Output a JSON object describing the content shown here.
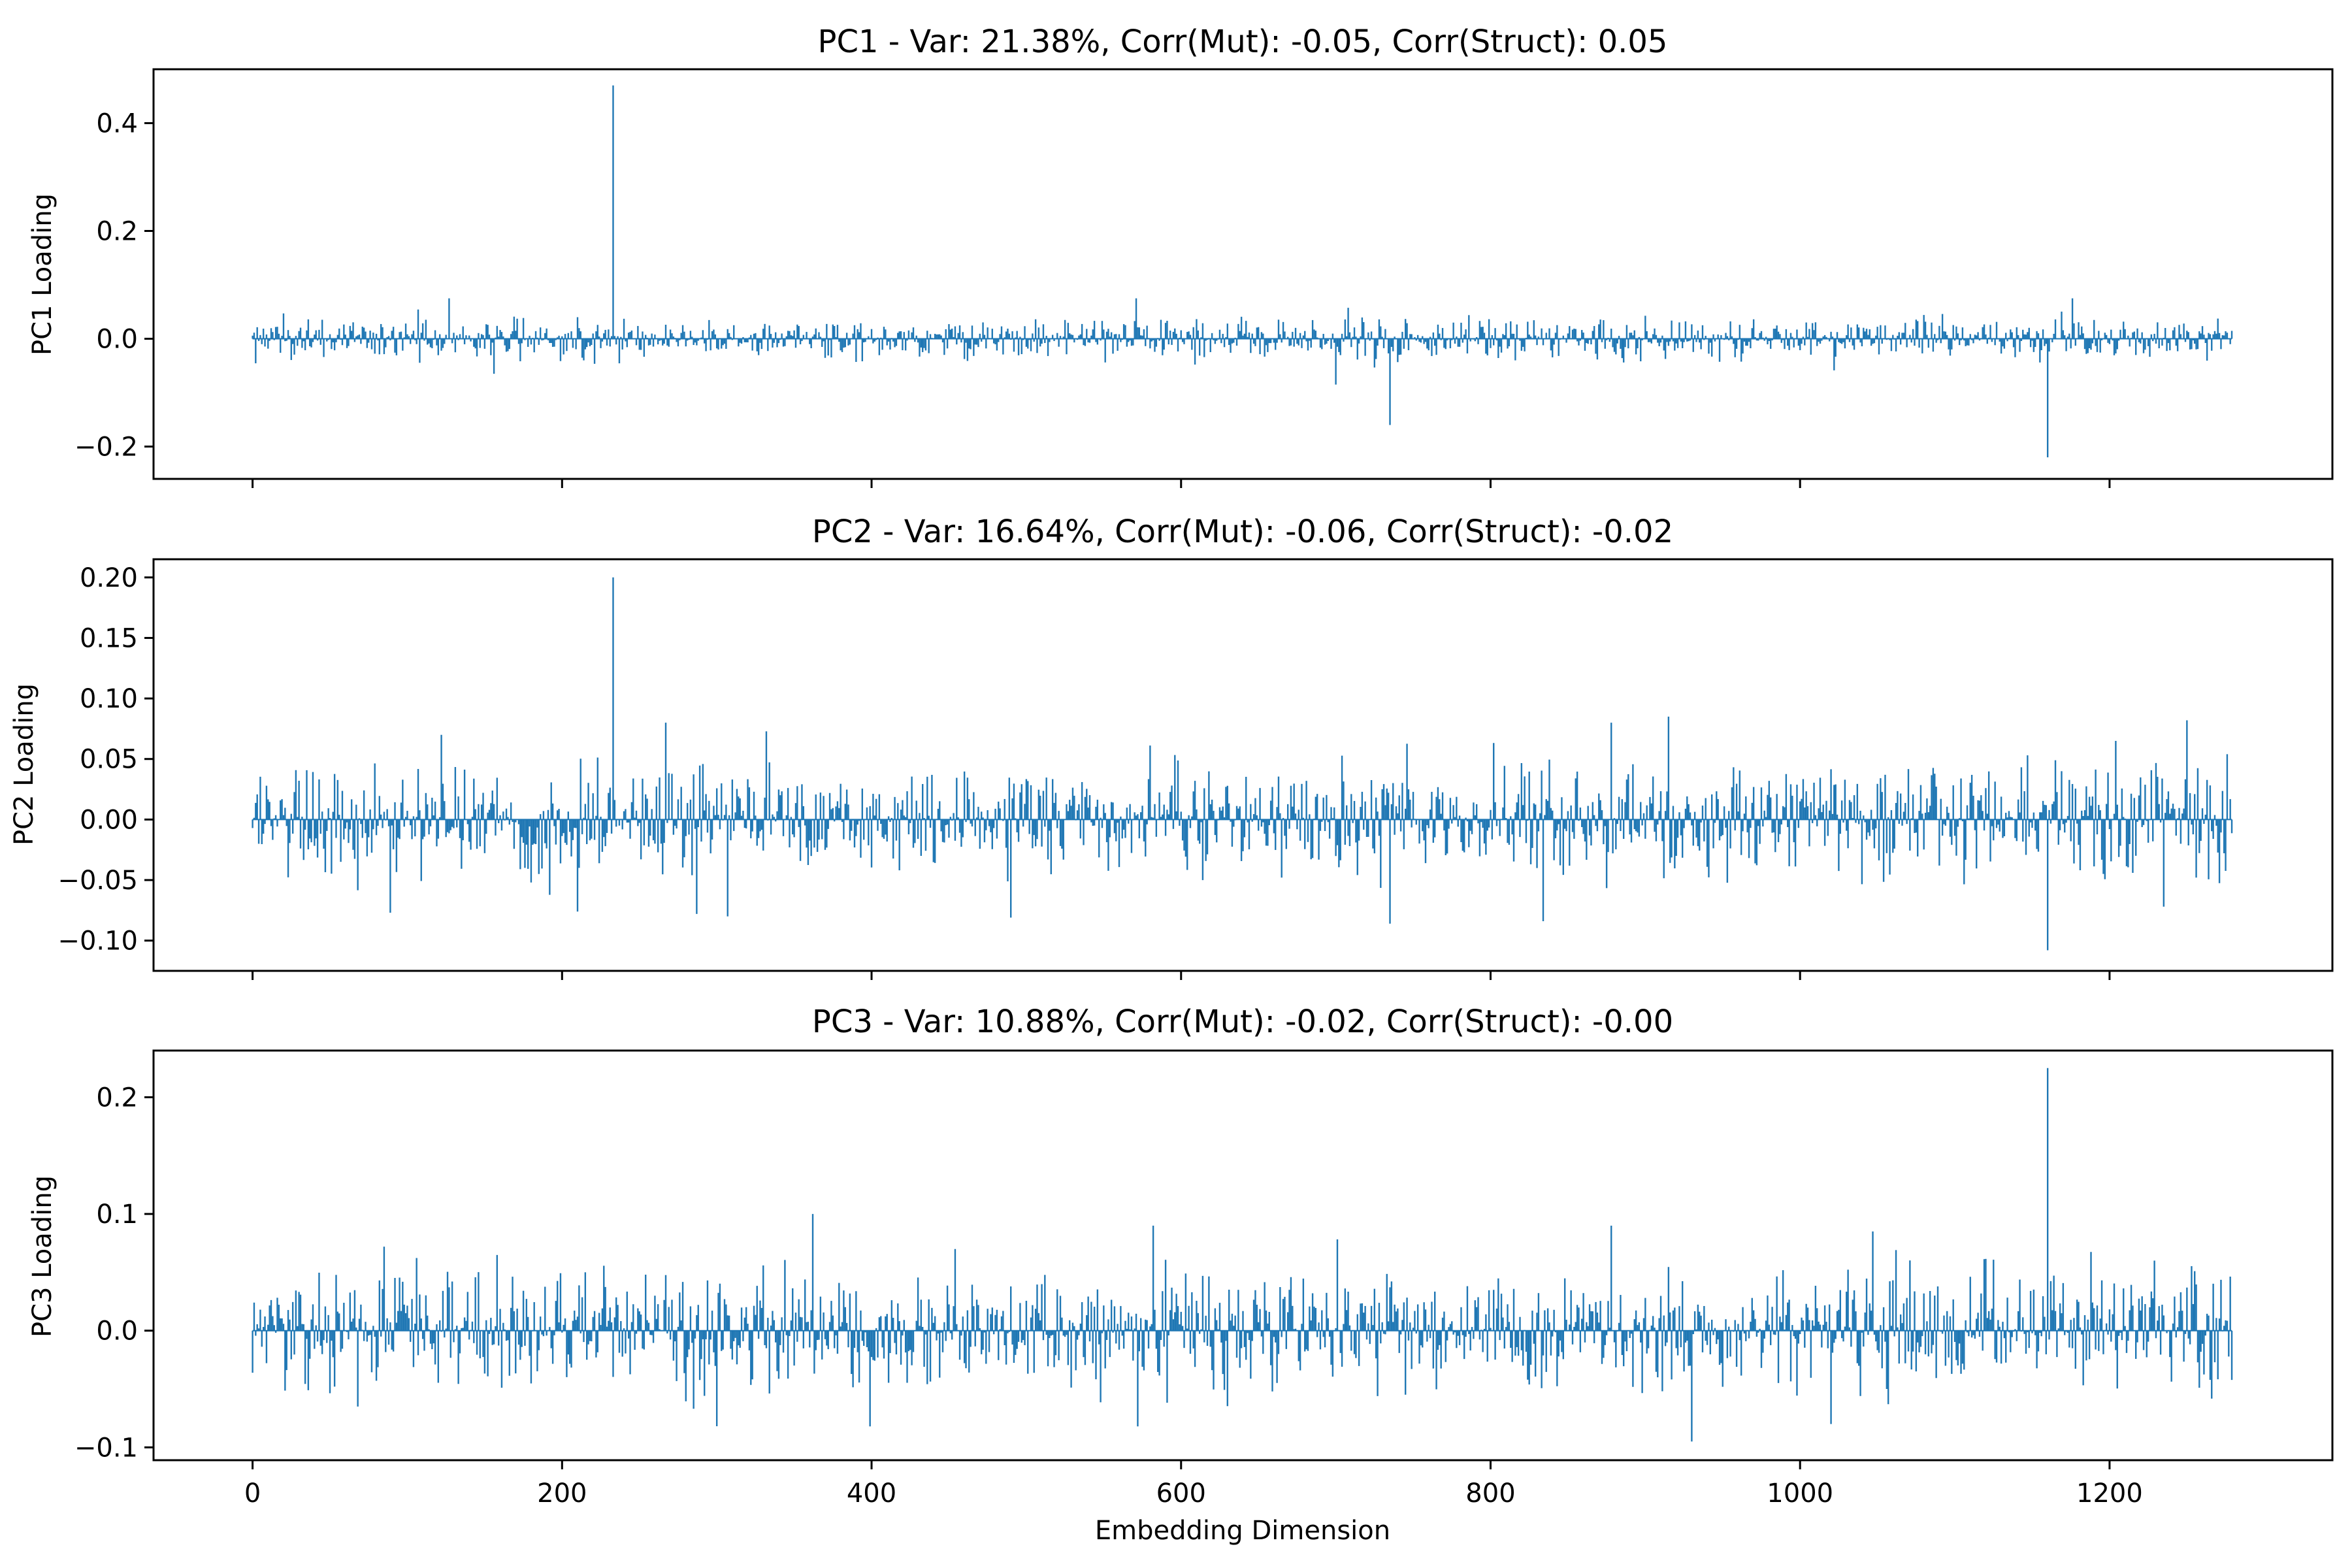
{
  "chart_data": [
    {
      "type": "bar",
      "title": "PC1 - Var: 21.38%, Corr(Mut): -0.05, Corr(Struct): 0.05",
      "ylabel": "PC1 Loading",
      "xlabel": "",
      "n_dims": 1280,
      "xlim": [
        -64,
        1344
      ],
      "ylim": [
        -0.26,
        0.5
      ],
      "yticks": [
        -0.2,
        0.0,
        0.2,
        0.4
      ],
      "ytick_labels": [
        "−0.2",
        "0.0",
        "0.2",
        "0.4"
      ],
      "xticks": [
        0,
        200,
        400,
        600,
        800,
        1000,
        1200
      ],
      "xtick_labels": [],
      "noise_scale": 0.018,
      "noise_max": 0.075,
      "spikes": [
        {
          "x": 233,
          "value": 0.47
        },
        {
          "x": 735,
          "value": -0.16
        },
        {
          "x": 1160,
          "value": -0.22
        },
        {
          "x": 127,
          "value": 0.075
        },
        {
          "x": 571,
          "value": 0.075
        },
        {
          "x": 1176,
          "value": 0.075
        },
        {
          "x": 700,
          "value": -0.085
        },
        {
          "x": 156,
          "value": -0.065
        }
      ]
    },
    {
      "type": "bar",
      "title": "PC2 - Var: 16.64%, Corr(Mut): -0.06, Corr(Struct): -0.02",
      "ylabel": "PC2 Loading",
      "xlabel": "",
      "n_dims": 1280,
      "xlim": [
        -64,
        1344
      ],
      "ylim": [
        -0.125,
        0.215
      ],
      "yticks": [
        -0.1,
        -0.05,
        0.0,
        0.05,
        0.1,
        0.15,
        0.2
      ],
      "ytick_labels": [
        "−0.10",
        "−0.05",
        "0.00",
        "0.05",
        "0.10",
        "0.15",
        "0.20"
      ],
      "xticks": [
        0,
        200,
        400,
        600,
        800,
        1000,
        1200
      ],
      "xtick_labels": [],
      "noise_scale": 0.022,
      "noise_max": 0.08,
      "spikes": [
        {
          "x": 233,
          "value": 0.2
        },
        {
          "x": 1160,
          "value": -0.108
        },
        {
          "x": 735,
          "value": -0.086
        },
        {
          "x": 915,
          "value": 0.085
        },
        {
          "x": 1250,
          "value": 0.082
        },
        {
          "x": 267,
          "value": 0.08
        },
        {
          "x": 89,
          "value": -0.077
        },
        {
          "x": 210,
          "value": -0.076
        },
        {
          "x": 287,
          "value": -0.078
        },
        {
          "x": 307,
          "value": -0.08
        },
        {
          "x": 490,
          "value": -0.081
        },
        {
          "x": 834,
          "value": -0.084
        },
        {
          "x": 1235,
          "value": -0.072
        }
      ]
    },
    {
      "type": "bar",
      "title": "PC3 - Var: 10.88%, Corr(Mut): -0.02, Corr(Struct): -0.00",
      "ylabel": "PC3 Loading",
      "xlabel": "Embedding Dimension",
      "n_dims": 1280,
      "xlim": [
        -64,
        1344
      ],
      "ylim": [
        -0.111,
        0.24
      ],
      "yticks": [
        -0.1,
        0.0,
        0.1,
        0.2
      ],
      "ytick_labels": [
        "−0.1",
        "0.0",
        "0.1",
        "0.2"
      ],
      "xticks": [
        0,
        200,
        400,
        600,
        800,
        1000,
        1200
      ],
      "xtick_labels": [
        "0",
        "200",
        "400",
        "600",
        "800",
        "1000",
        "1200"
      ],
      "noise_scale": 0.024,
      "noise_max": 0.085,
      "spikes": [
        {
          "x": 1160,
          "value": 0.225
        },
        {
          "x": 362,
          "value": 0.1
        },
        {
          "x": 582,
          "value": 0.09
        },
        {
          "x": 878,
          "value": 0.09
        },
        {
          "x": 1047,
          "value": 0.085
        },
        {
          "x": 930,
          "value": -0.095
        },
        {
          "x": 399,
          "value": -0.082
        },
        {
          "x": 572,
          "value": -0.082
        },
        {
          "x": 1020,
          "value": -0.08
        },
        {
          "x": 85,
          "value": 0.072
        },
        {
          "x": 68,
          "value": -0.065
        }
      ]
    }
  ]
}
